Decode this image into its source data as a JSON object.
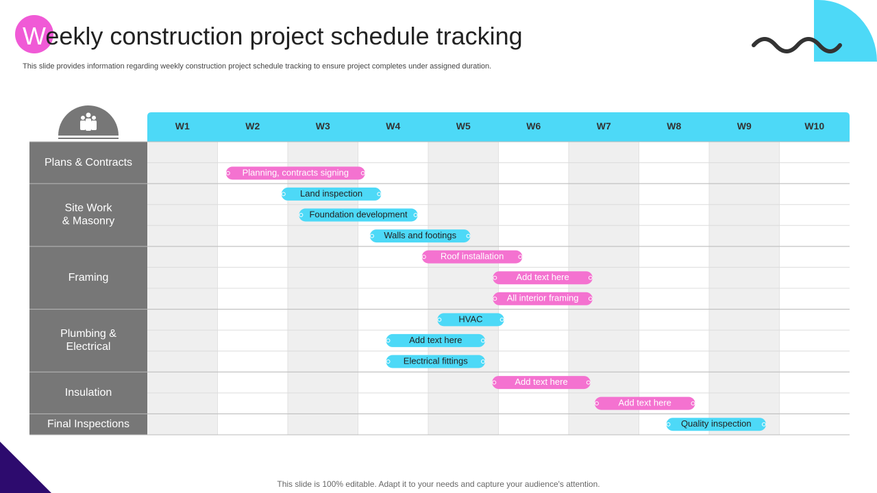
{
  "chart_data": {
    "type": "gantt",
    "title": "Weekly construction project schedule tracking",
    "subtitle": "This slide provides information regarding weekly construction project schedule tracking to ensure project completes under assigned duration.",
    "footer": "This slide is 100% editable. Adapt it to your needs and capture your audience's attention.",
    "categories": [
      "W1",
      "W2",
      "W3",
      "W4",
      "W5",
      "W6",
      "W7",
      "W8",
      "W9",
      "W10"
    ],
    "xlim": [
      0,
      10
    ],
    "groups": [
      {
        "label": "Plans & Contracts",
        "tasks": [
          null,
          {
            "name": "Planning, contracts signing",
            "color": "#f472d0",
            "start": 1.12,
            "end": 3.1
          }
        ]
      },
      {
        "label": "Site Work & Masonry",
        "tasks": [
          {
            "name": "Land inspection",
            "color": "#4dd9f7",
            "start": 1.91,
            "end": 3.33
          },
          {
            "name": "Foundation development",
            "color": "#4dd9f7",
            "start": 2.16,
            "end": 3.85
          },
          {
            "name": "Walls and footings",
            "color": "#4dd9f7",
            "start": 3.17,
            "end": 4.6
          }
        ]
      },
      {
        "label": "Framing",
        "tasks": [
          {
            "name": "Roof installation",
            "color": "#f472d0",
            "start": 3.91,
            "end": 5.34
          },
          {
            "name": "Add text here",
            "color": "#f472d0",
            "start": 4.92,
            "end": 6.34
          },
          {
            "name": "All interior framing",
            "color": "#f472d0",
            "start": 4.92,
            "end": 6.34
          }
        ]
      },
      {
        "label": "Plumbing & Electrical",
        "tasks": [
          {
            "name": "HVAC",
            "color": "#4dd9f7",
            "start": 4.13,
            "end": 5.08
          },
          {
            "name": "Add text here",
            "color": "#4dd9f7",
            "start": 3.4,
            "end": 4.81
          },
          {
            "name": "Electrical fittings",
            "color": "#4dd9f7",
            "start": 3.4,
            "end": 4.81
          }
        ]
      },
      {
        "label": "Insulation",
        "tasks": [
          {
            "name": "Add text here",
            "color": "#f472d0",
            "start": 4.91,
            "end": 6.31
          },
          {
            "name": "Add text here",
            "color": "#f472d0",
            "start": 6.37,
            "end": 7.8
          }
        ]
      },
      {
        "label": "Final Inspections",
        "tasks": [
          {
            "name": "Quality inspection",
            "color": "#4dd9f7",
            "start": 7.39,
            "end": 8.81
          }
        ]
      }
    ]
  }
}
